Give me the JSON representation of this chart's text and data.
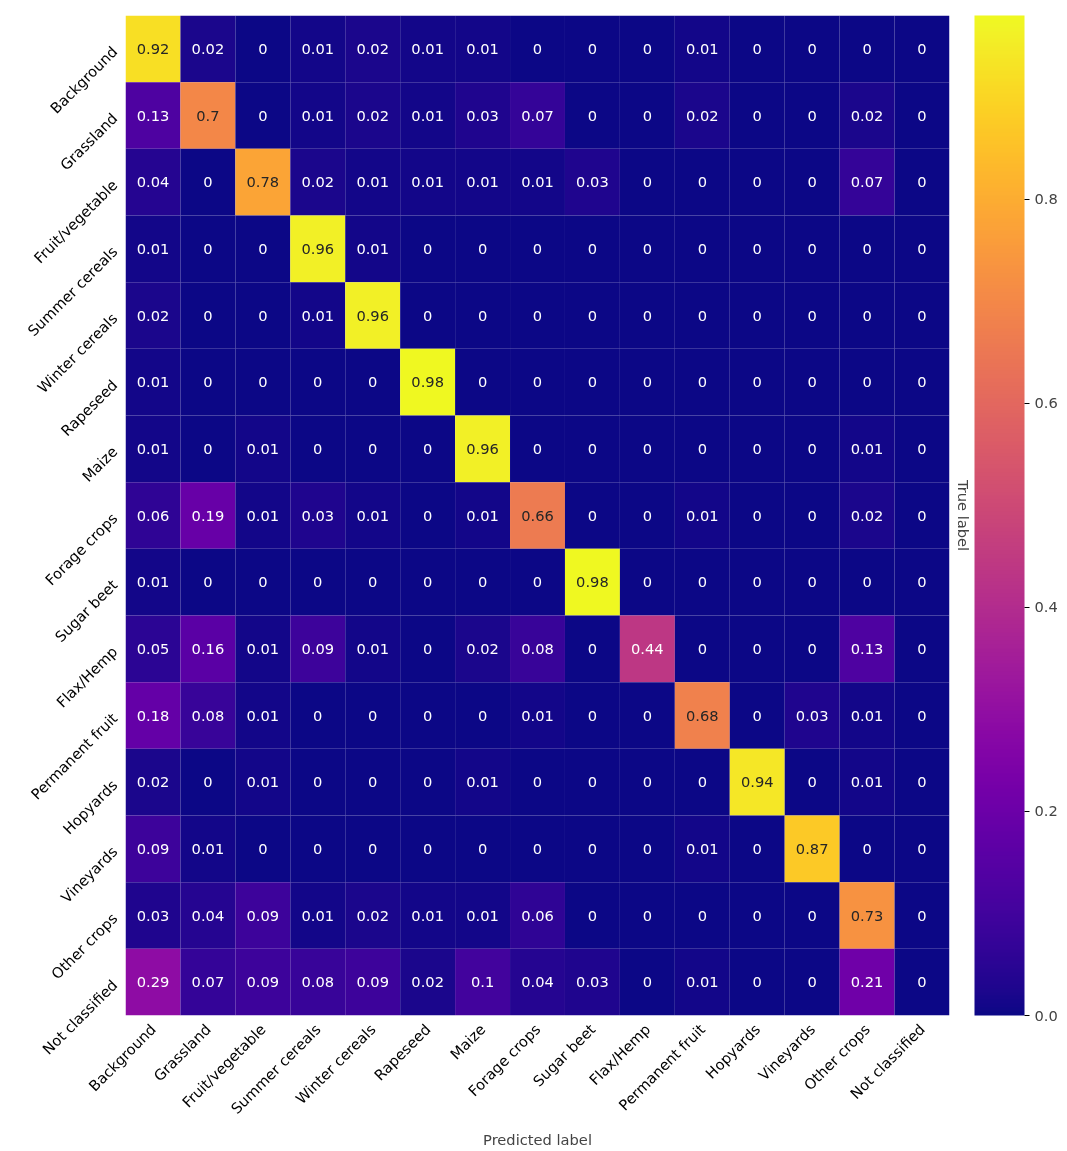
{
  "chart_data": {
    "type": "heatmap",
    "xlabel": "Predicted label",
    "ylabel": "True label",
    "categories": [
      "Background",
      "Grassland",
      "Fruit/vegetable",
      "Summer cereals",
      "Winter cereals",
      "Rapeseed",
      "Maize",
      "Forage crops",
      "Sugar beet",
      "Flax/Hemp",
      "Permanent fruit",
      "Hopyards",
      "Vineyards",
      "Other crops",
      "Not classified"
    ],
    "y_categories": [
      "Background",
      "Grassland",
      "Fruit/vegetable",
      "Summer cereals",
      "Winter cereals",
      "Rapeseed",
      "Maize",
      "Forage crops",
      "Sugar beet",
      "Flax/Hemp",
      "Permanent fruit",
      "Hopyards",
      "Vineyards",
      "Other crops",
      "Not classified"
    ],
    "cells": [
      [
        0.92,
        0.02,
        0,
        0.01,
        0.02,
        0.01,
        0.01,
        0,
        0,
        0,
        0.01,
        0,
        0,
        0,
        0
      ],
      [
        0.13,
        0.7,
        0,
        0.01,
        0.02,
        0.01,
        0.03,
        0.07,
        0,
        0,
        0.02,
        0,
        0,
        0.02,
        0
      ],
      [
        0.04,
        0,
        0.78,
        0.02,
        0.01,
        0.01,
        0.01,
        0.01,
        0.03,
        0,
        0,
        0,
        0,
        0.07,
        0
      ],
      [
        0.01,
        0,
        0,
        0.96,
        0.01,
        0,
        0,
        0,
        0,
        0,
        0,
        0,
        0,
        0,
        0
      ],
      [
        0.02,
        0,
        0,
        0.01,
        0.96,
        0,
        0,
        0,
        0,
        0,
        0,
        0,
        0,
        0,
        0
      ],
      [
        0.01,
        0,
        0,
        0,
        0,
        0.98,
        0,
        0,
        0,
        0,
        0,
        0,
        0,
        0,
        0
      ],
      [
        0.01,
        0,
        0.01,
        0,
        0,
        0,
        0.96,
        0,
        0,
        0,
        0,
        0,
        0,
        0.01,
        0
      ],
      [
        0.06,
        0.19,
        0.01,
        0.03,
        0.01,
        0,
        0.01,
        0.66,
        0,
        0,
        0.01,
        0,
        0,
        0.02,
        0
      ],
      [
        0.01,
        0,
        0,
        0,
        0,
        0,
        0,
        0,
        0.98,
        0,
        0,
        0,
        0,
        0,
        0
      ],
      [
        0.05,
        0.16,
        0.01,
        0.09,
        0.01,
        0,
        0.02,
        0.08,
        0,
        0.44,
        0,
        0,
        0,
        0.13,
        0
      ],
      [
        0.18,
        0.08,
        0.01,
        0,
        0,
        0,
        0,
        0.01,
        0,
        0,
        0.68,
        0,
        0.03,
        0.01,
        0
      ],
      [
        0.02,
        0,
        0.01,
        0,
        0,
        0,
        0.01,
        0,
        0,
        0,
        0,
        0.94,
        0,
        0.01,
        0
      ],
      [
        0.09,
        0.01,
        0,
        0,
        0,
        0,
        0,
        0,
        0,
        0,
        0.01,
        0,
        0.87,
        0,
        0
      ],
      [
        0.03,
        0.04,
        0.09,
        0.01,
        0.02,
        0.01,
        0.01,
        0.06,
        0,
        0,
        0,
        0,
        0,
        0.73,
        0
      ],
      [
        0.29,
        0.07,
        0.09,
        0.08,
        0.09,
        0.02,
        0.1,
        0.04,
        0.03,
        0,
        0.01,
        0,
        0,
        0.21,
        0
      ]
    ],
    "clim": [
      0,
      0.98
    ],
    "cticks": [
      {
        "value": 0,
        "label": "0.0"
      },
      {
        "value": 0.2,
        "label": "0.2"
      },
      {
        "value": 0.4,
        "label": "0.4"
      },
      {
        "value": 0.6,
        "label": "0.6"
      },
      {
        "value": 0.8,
        "label": "0.8"
      }
    ],
    "data_labels": true
  }
}
